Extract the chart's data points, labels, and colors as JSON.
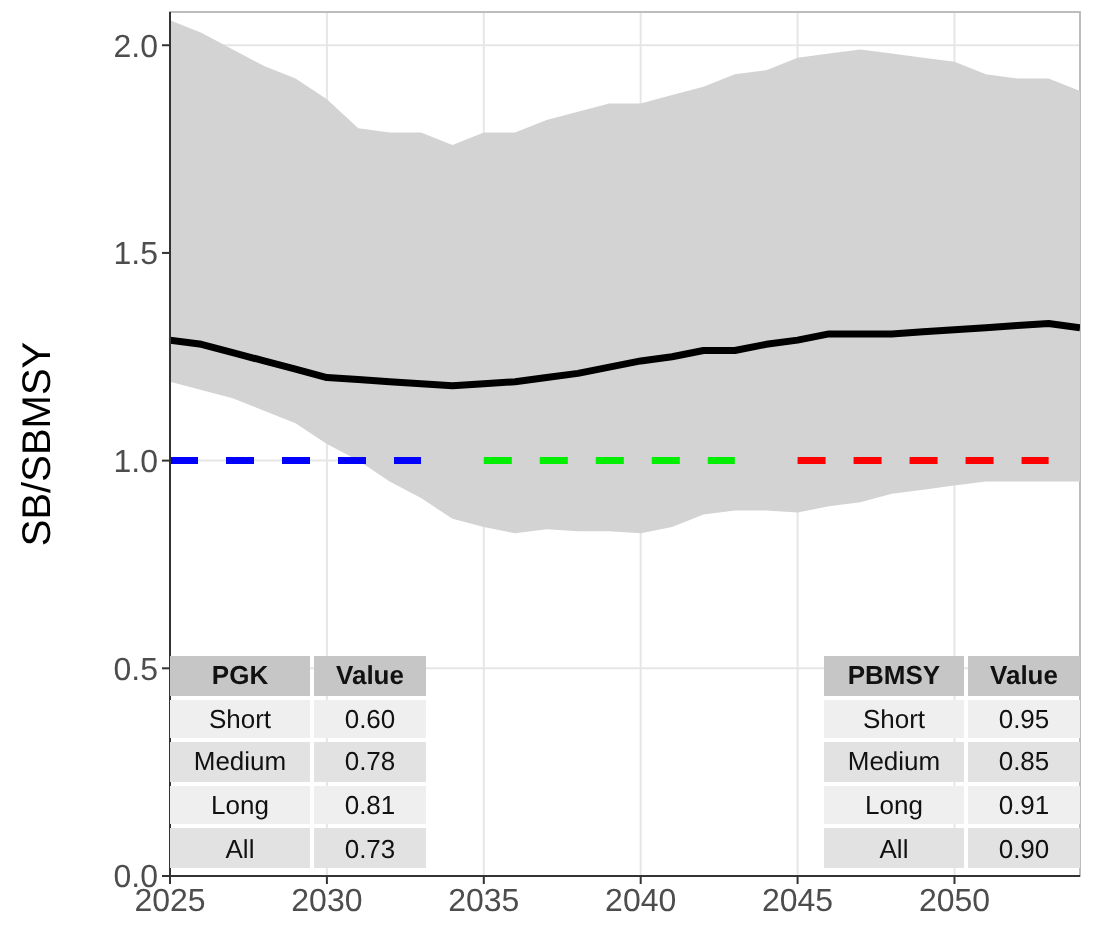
{
  "chart_data": {
    "type": "line",
    "ylabel": "SB/SBMSY",
    "xlim": [
      2025,
      2054
    ],
    "xticks": [
      2025,
      2030,
      2035,
      2040,
      2045,
      2050
    ],
    "ylim": [
      0,
      2.08
    ],
    "yticks": [
      {
        "value": 0,
        "label": "0.0"
      },
      0.5,
      {
        "value": 1,
        "label": "1.0"
      },
      1.5,
      {
        "value": 2,
        "label": "2.0"
      }
    ],
    "x": [
      2025,
      2026,
      2027,
      2028,
      2029,
      2030,
      2031,
      2032,
      2033,
      2034,
      2035,
      2036,
      2037,
      2038,
      2039,
      2040,
      2041,
      2042,
      2043,
      2044,
      2045,
      2046,
      2047,
      2048,
      2049,
      2050,
      2051,
      2052,
      2053,
      2054
    ],
    "series": [
      {
        "color": "#000000",
        "line_style": "solid",
        "values": [
          1.29,
          1.28,
          1.26,
          1.24,
          1.22,
          1.2,
          1.195,
          1.19,
          1.185,
          1.18,
          1.185,
          1.19,
          1.2,
          1.21,
          1.225,
          1.24,
          1.25,
          1.265,
          1.265,
          1.28,
          1.29,
          1.305,
          1.305,
          1.305,
          1.31,
          1.315,
          1.32,
          1.325,
          1.33,
          1.32
        ],
        "lower": [
          1.19,
          1.17,
          1.15,
          1.12,
          1.09,
          1.04,
          1.0,
          0.95,
          0.91,
          0.86,
          0.84,
          0.825,
          0.835,
          0.83,
          0.83,
          0.825,
          0.84,
          0.87,
          0.88,
          0.88,
          0.875,
          0.89,
          0.9,
          0.92,
          0.93,
          0.94,
          0.95,
          0.95,
          0.95,
          0.95
        ],
        "upper": [
          2.06,
          2.03,
          1.99,
          1.95,
          1.92,
          1.87,
          1.8,
          1.79,
          1.79,
          1.76,
          1.79,
          1.79,
          1.82,
          1.84,
          1.86,
          1.86,
          1.88,
          1.9,
          1.93,
          1.94,
          1.97,
          1.98,
          1.99,
          1.98,
          1.97,
          1.96,
          1.93,
          1.92,
          1.92,
          1.89
        ]
      },
      {
        "type": "line",
        "color": "#0000ff",
        "line_style": "dashed",
        "x": [
          2025,
          2033
        ],
        "values": [
          1.0,
          1.0
        ]
      },
      {
        "type": "line",
        "color": "#00ee00",
        "line_style": "dashed",
        "x": [
          2035,
          2043
        ],
        "values": [
          1.0,
          1.0
        ]
      },
      {
        "type": "line",
        "color": "#ff0000",
        "line_style": "dashed",
        "x": [
          2045,
          2053
        ],
        "values": [
          1.0,
          1.0
        ]
      }
    ],
    "grid": true,
    "annotations": [
      "PGK",
      "Value",
      "Short",
      "0.60",
      "Medium",
      "0.78",
      "Long",
      "0.81",
      "All",
      "0.73",
      "PBMSY",
      "Value",
      "Short",
      "0.95",
      "Medium",
      "0.85",
      "Long",
      "0.91",
      "All",
      "0.90"
    ]
  }
}
